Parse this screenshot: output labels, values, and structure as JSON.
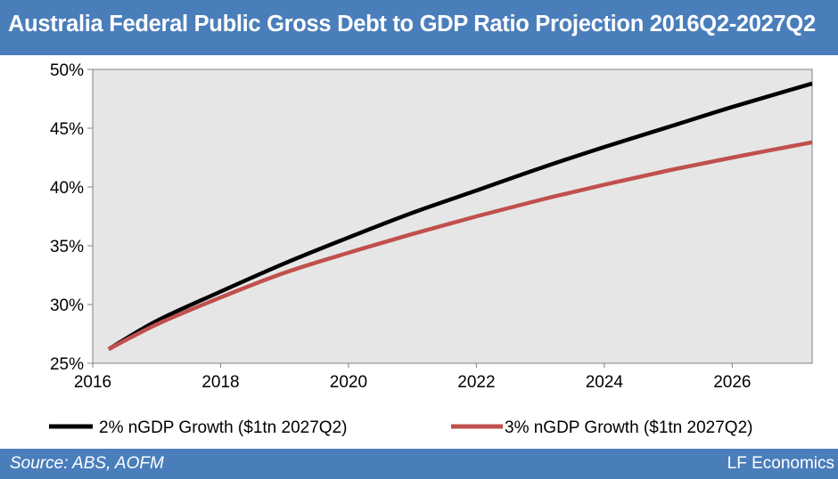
{
  "header": {
    "title": "Australia Federal Public Gross Debt to GDP Ratio Projection 2016Q2-2027Q2"
  },
  "footer": {
    "source": "Source: ABS, AOFM",
    "brand": "LF Economics"
  },
  "colors": {
    "bar": "#4a7ebb",
    "plot_bg": "#e6e6e6",
    "series_2pct": "#000000",
    "series_3pct": "#c0504d"
  },
  "chart_data": {
    "type": "line",
    "title": "Australia Federal Public Gross Debt to GDP Ratio Projection 2016Q2-2027Q2",
    "xlim": [
      2016,
      2027.25
    ],
    "ylim": [
      25,
      50
    ],
    "x_ticks": [
      2016,
      2018,
      2020,
      2022,
      2024,
      2026
    ],
    "x_tick_labels": [
      "2016",
      "2018",
      "2020",
      "2022",
      "2024",
      "2026"
    ],
    "y_ticks": [
      25,
      30,
      35,
      40,
      45,
      50
    ],
    "y_tick_labels": [
      "25%",
      "30%",
      "35%",
      "40%",
      "45%",
      "50%"
    ],
    "grid": false,
    "legend_position": "bottom",
    "x": [
      2016.25,
      2017,
      2018,
      2019,
      2020,
      2021,
      2022,
      2023,
      2024,
      2025,
      2026,
      2027.25
    ],
    "series": [
      {
        "name": "2% nGDP Growth ($1tn 2027Q2)",
        "color": "#000000",
        "values": [
          26.2,
          28.6,
          31.1,
          33.5,
          35.7,
          37.8,
          39.7,
          41.6,
          43.4,
          45.1,
          46.8,
          48.8
        ]
      },
      {
        "name": "3% nGDP Growth ($1tn 2027Q2)",
        "color": "#c0504d",
        "values": [
          26.2,
          28.3,
          30.6,
          32.7,
          34.4,
          36.0,
          37.5,
          38.9,
          40.2,
          41.4,
          42.5,
          43.8
        ]
      }
    ]
  }
}
